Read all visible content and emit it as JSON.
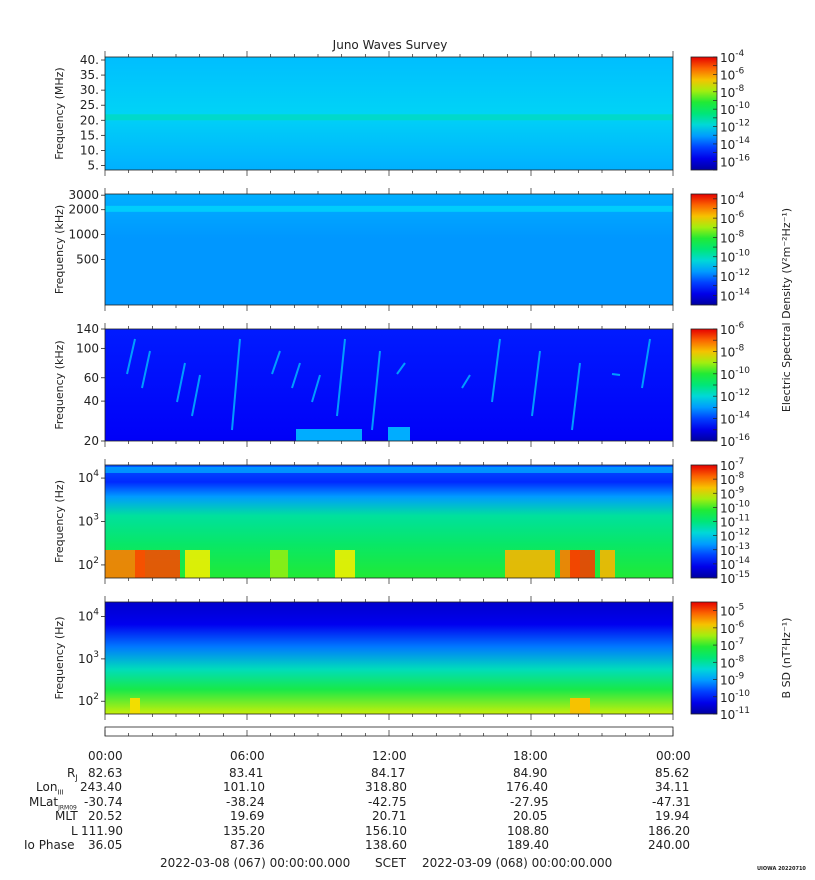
{
  "title": "Juno Waves Survey",
  "credit": "UIOWA 20220710",
  "shared_colorbar_label": "Electric Spectral Density (V²m⁻²Hz⁻¹)",
  "bsd_colorbar_label": "B SD (nT²Hz⁻¹)",
  "chart_data": [
    {
      "type": "heatmap",
      "ylabel": "Frequency (MHz)",
      "y_scale": "linear",
      "ylim": [
        3.5,
        41
      ],
      "y_ticks": [
        5,
        10,
        15,
        20,
        25,
        30,
        35,
        40
      ],
      "y_tick_labels": [
        "5.",
        "10.",
        "15.",
        "20.",
        "25.",
        "30.",
        "35.",
        "40."
      ],
      "features": [
        {
          "name": "band",
          "y": 21,
          "level": -11.5
        }
      ],
      "background_level": -12.3,
      "colorbar": {
        "scale": "log",
        "range_exp": [
          -17,
          -4
        ],
        "tick_exponents": [
          -16,
          -14,
          -12,
          -10,
          -8,
          -6,
          -4
        ]
      }
    },
    {
      "type": "heatmap",
      "ylabel": "Frequency (kHz)",
      "y_scale": "log",
      "ylim": [
        140,
        3100
      ],
      "y_ticks": [
        500,
        1000,
        2000,
        3000
      ],
      "y_tick_labels": [
        "500",
        "1000",
        "2000",
        "3000"
      ],
      "features": [
        {
          "name": "band",
          "y": 2050,
          "level": -10.8
        }
      ],
      "background_level": -11.5,
      "colorbar": {
        "scale": "log",
        "range_exp": [
          -15,
          -3.5
        ],
        "tick_exponents": [
          -14,
          -12,
          -10,
          -8,
          -6,
          -4
        ]
      }
    },
    {
      "type": "heatmap",
      "ylabel": "Frequency (kHz)",
      "y_scale": "log",
      "ylim": [
        20,
        140
      ],
      "y_ticks": [
        20,
        40,
        60,
        100,
        140
      ],
      "y_tick_labels": [
        "20",
        "40",
        "60",
        "100",
        "140"
      ],
      "background_level": -14.5,
      "colorbar": {
        "scale": "log",
        "range_exp": [
          -16,
          -6
        ],
        "tick_exponents": [
          -16,
          -14,
          -12,
          -10,
          -8,
          -6
        ]
      }
    },
    {
      "type": "heatmap",
      "ylabel": "Frequency (Hz)",
      "y_scale": "log",
      "ylim": [
        50,
        20000
      ],
      "y_ticks": [
        100,
        1000,
        10000
      ],
      "y_tick_labels": [
        {
          "base": "10",
          "exp": "2"
        },
        {
          "base": "10",
          "exp": "3"
        },
        {
          "base": "10",
          "exp": "4"
        }
      ],
      "colorbar": {
        "scale": "log",
        "range_exp": [
          -15,
          -7
        ],
        "tick_exponents": [
          -15,
          -14,
          -13,
          -12,
          -11,
          -10,
          -9,
          -8,
          -7
        ]
      }
    },
    {
      "type": "heatmap",
      "ylabel": "Frequency (Hz)",
      "y_scale": "log",
      "ylim": [
        50,
        22000
      ],
      "y_ticks": [
        100,
        1000,
        10000
      ],
      "y_tick_labels": [
        {
          "base": "10",
          "exp": "2"
        },
        {
          "base": "10",
          "exp": "3"
        },
        {
          "base": "10",
          "exp": "4"
        }
      ],
      "colorbar": {
        "scale": "log",
        "range_exp": [
          -11,
          -4.5
        ],
        "tick_exponents": [
          -11,
          -10,
          -9,
          -8,
          -7,
          -6,
          -5
        ]
      }
    }
  ],
  "ephemeris": {
    "time_labels": [
      "00:00",
      "06:00",
      "12:00",
      "18:00",
      "00:00"
    ],
    "rows": [
      {
        "label": "R",
        "sub": "J",
        "values": [
          "82.63",
          "83.41",
          "84.17",
          "84.90",
          "85.62"
        ]
      },
      {
        "label": "Lon",
        "sub": "III",
        "values": [
          "243.40",
          "101.10",
          "318.80",
          "176.40",
          "34.11"
        ]
      },
      {
        "label": "MLat",
        "sub": "JRM09",
        "values": [
          "-30.74",
          "-38.24",
          "-42.75",
          "-27.95",
          "-47.31"
        ]
      },
      {
        "label": "MLT",
        "sub": "",
        "values": [
          "20.52",
          "19.69",
          "20.71",
          "20.05",
          "19.94"
        ]
      },
      {
        "label": "L",
        "sub": "",
        "values": [
          "111.90",
          "135.20",
          "156.10",
          "108.80",
          "186.20"
        ]
      },
      {
        "label": "Io Phase",
        "sub": "",
        "values": [
          "36.05",
          "87.36",
          "138.60",
          "189.40",
          "240.00"
        ]
      }
    ],
    "start": "2022-03-08 (067) 00:00:00.000",
    "scet": "SCET",
    "end": "2022-03-09 (068) 00:00:00.000"
  }
}
